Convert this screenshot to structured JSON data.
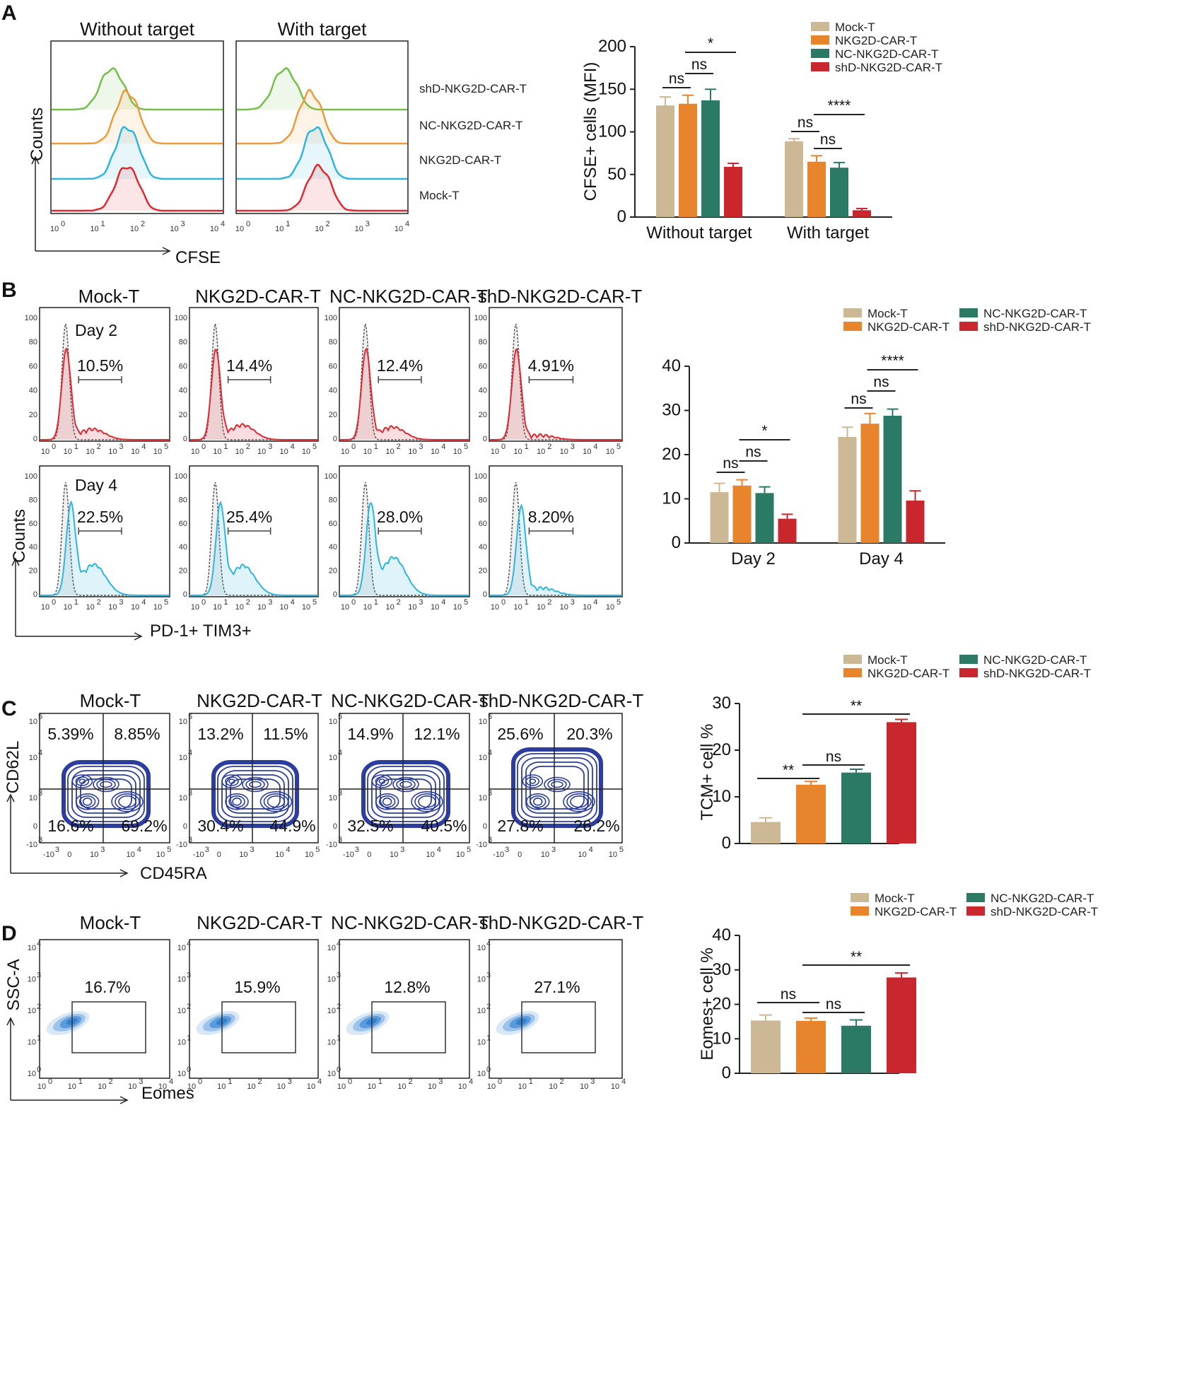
{
  "colors": {
    "mock": "#cdb896",
    "nkg2d": "#e8842c",
    "nc": "#2a7a65",
    "shd": "#c9272d",
    "green": "#72c04a",
    "orange": "#ec9a3a",
    "cyan": "#2fb5df",
    "red": "#dd2a33",
    "blue": "#2c3d9e",
    "density": "#2e7fd0"
  },
  "groups": [
    "Mock-T",
    "NKG2D-CAR-T",
    "NC-NKG2D-CAR-T",
    "shD-NKG2D-CAR-T"
  ],
  "panelA": {
    "label": "A",
    "hist_titles": [
      "Without target",
      "With target"
    ],
    "ylabel": "Counts",
    "xlabel": "CFSE",
    "ticks": [
      "10",
      "10",
      "10",
      "10",
      "10"
    ],
    "exps": [
      "0",
      "1",
      "2",
      "3",
      "4"
    ],
    "rows": [
      "shD-NKG2D-CAR-T",
      "NC-NKG2D-CAR-T",
      "NKG2D-CAR-T",
      "Mock-T"
    ]
  },
  "panelB": {
    "label": "B",
    "day_labels": [
      "Day 2",
      "Day 4"
    ],
    "day2_pct": [
      "10.5%",
      "14.4%",
      "12.4%",
      "4.91%"
    ],
    "day4_pct": [
      "22.5%",
      "25.4%",
      "28.0%",
      "8.20%"
    ],
    "ylabel": "Counts",
    "xlabel": "PD-1+ TIM3+",
    "yticks": [
      "100",
      "80",
      "60",
      "40",
      "20",
      "0"
    ],
    "ticks": [
      "10",
      "10",
      "10",
      "10",
      "10",
      "10"
    ],
    "exps": [
      "0",
      "1",
      "2",
      "3",
      "4",
      "5"
    ]
  },
  "panelC": {
    "label": "C",
    "quadrants": [
      [
        "5.39%",
        "8.85%",
        "16.6%",
        "69.2%"
      ],
      [
        "13.2%",
        "11.5%",
        "30.4%",
        "44.9%"
      ],
      [
        "14.9%",
        "12.1%",
        "32.5%",
        "40.5%"
      ],
      [
        "25.6%",
        "20.3%",
        "27.8%",
        "26.2%"
      ]
    ],
    "ylabel": "CD62L",
    "xlabel": "CD45RA",
    "yt_base": [
      "10",
      "10",
      "10",
      "0",
      "-10"
    ],
    "yt_exp": [
      "5",
      "4",
      "3",
      "",
      "3"
    ],
    "xt_base": [
      "-10",
      "0",
      "10",
      "10",
      "10"
    ],
    "xt_exp": [
      "3",
      "",
      "3",
      "4",
      "5"
    ]
  },
  "panelD": {
    "label": "D",
    "pcts": [
      "16.7%",
      "15.9%",
      "12.8%",
      "27.1%"
    ],
    "ylabel": "SSC-A",
    "xlabel": "Eomes",
    "ticks": [
      "10",
      "10",
      "10",
      "10",
      "10"
    ],
    "exps": [
      "0",
      "1",
      "2",
      "3",
      "4"
    ]
  },
  "chart_data": [
    {
      "type": "bar",
      "title": "",
      "xlabel": "",
      "ylabel": "CFSE+ cells (MFI)",
      "ylim": [
        0,
        200
      ],
      "yticks": [
        "0",
        "50",
        "100",
        "150",
        "200"
      ],
      "categories": [
        "Without target",
        "With target"
      ],
      "series": [
        {
          "name": "Mock-T",
          "values": [
            131,
            89
          ],
          "errors": [
            10,
            3
          ]
        },
        {
          "name": "NKG2D-CAR-T",
          "values": [
            133,
            65
          ],
          "errors": [
            10,
            7
          ]
        },
        {
          "name": "NC-NKG2D-CAR-T",
          "values": [
            137,
            58
          ],
          "errors": [
            13,
            6
          ]
        },
        {
          "name": "shD-NKG2D-CAR-T",
          "values": [
            59,
            8
          ],
          "errors": [
            4,
            2
          ]
        }
      ],
      "annotations": [
        "ns",
        "ns",
        "*",
        "ns",
        "ns",
        "****"
      ]
    },
    {
      "type": "bar",
      "title": "",
      "xlabel": "",
      "ylabel": "",
      "ylim": [
        0,
        40
      ],
      "yticks": [
        "0",
        "10",
        "20",
        "30",
        "40"
      ],
      "categories": [
        "Day 2",
        "Day 4"
      ],
      "series": [
        {
          "name": "Mock-T",
          "values": [
            11.5,
            24
          ],
          "errors": [
            2,
            2.2
          ]
        },
        {
          "name": "NKG2D-CAR-T",
          "values": [
            13,
            27
          ],
          "errors": [
            1.3,
            2.3
          ]
        },
        {
          "name": "NC-NKG2D-CAR-T",
          "values": [
            11.3,
            28.8
          ],
          "errors": [
            1.4,
            1.5
          ]
        },
        {
          "name": "shD-NKG2D-CAR-T",
          "values": [
            5.5,
            9.6
          ],
          "errors": [
            1,
            2.2
          ]
        }
      ],
      "annotations": [
        "ns",
        "ns",
        "*",
        "ns",
        "ns",
        "****"
      ]
    },
    {
      "type": "bar",
      "title": "",
      "xlabel": "",
      "ylabel": "TCM+ cell %",
      "ylim": [
        0,
        30
      ],
      "yticks": [
        "0",
        "10",
        "20",
        "30"
      ],
      "categories": [
        "Mock-T",
        "NKG2D-CAR-T",
        "NC-NKG2D-CAR-T",
        "shD-NKG2D-CAR-T"
      ],
      "values": [
        4.6,
        12.6,
        15.2,
        26
      ],
      "errors": [
        0.9,
        0.7,
        0.7,
        0.6
      ],
      "annotations": [
        "**",
        "ns",
        "**"
      ]
    },
    {
      "type": "bar",
      "title": "",
      "xlabel": "",
      "ylabel": "Eomes+ cell %",
      "ylim": [
        0,
        40
      ],
      "yticks": [
        "0",
        "10",
        "20",
        "30",
        "40"
      ],
      "categories": [
        "Mock-T",
        "NKG2D-CAR-T",
        "NC-NKG2D-CAR-T",
        "shD-NKG2D-CAR-T"
      ],
      "values": [
        15.3,
        15.2,
        13.8,
        27.8
      ],
      "errors": [
        1.6,
        0.8,
        1.7,
        1.3
      ],
      "annotations": [
        "ns",
        "ns",
        "**"
      ]
    }
  ]
}
